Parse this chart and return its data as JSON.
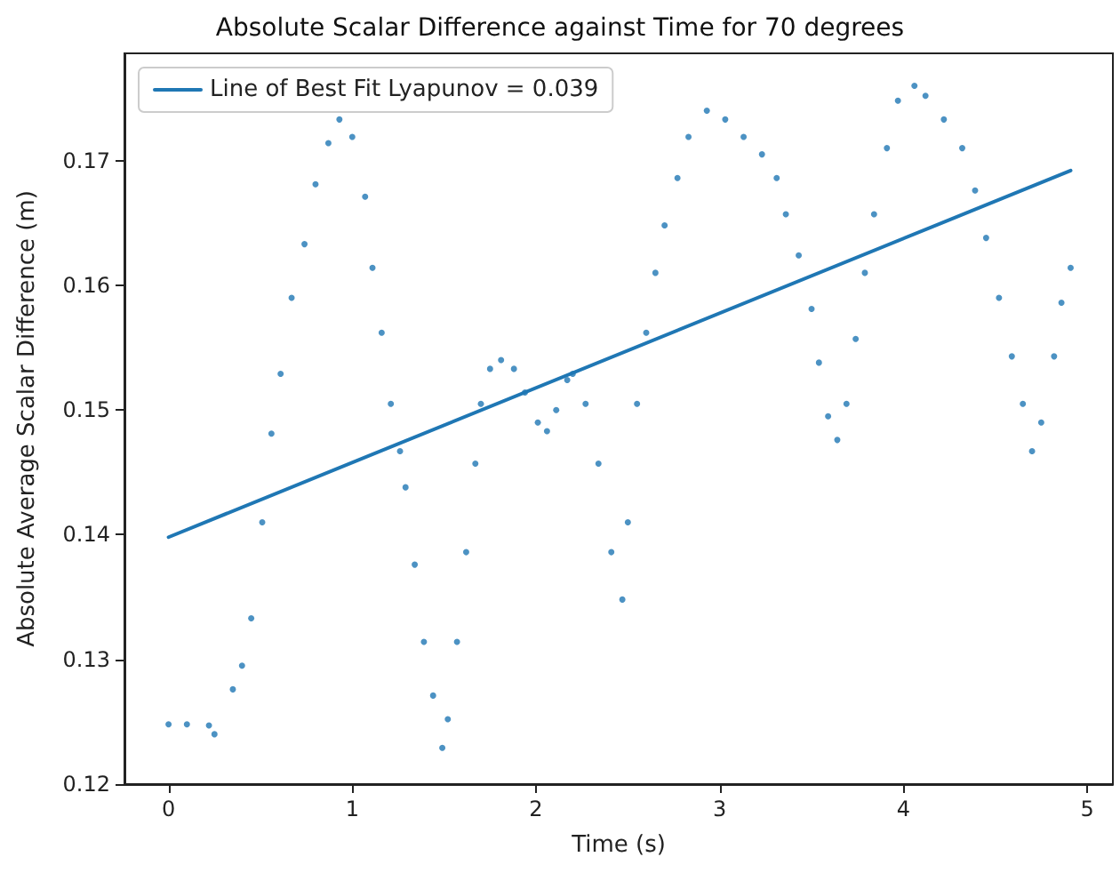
{
  "chart_data": {
    "type": "scatter",
    "title": "Absolute Scalar Difference against Time for 70 degrees",
    "xlabel": "Time (s)",
    "ylabel": "Absolute Average Scalar Difference (m)",
    "xlim": [
      -0.24,
      5.14
    ],
    "ylim": [
      0.12,
      0.1786
    ],
    "xticks": [
      0,
      1,
      2,
      3,
      4,
      5
    ],
    "yticks": [
      0.12,
      0.13,
      0.14,
      0.15,
      0.16,
      0.17
    ],
    "grid": false,
    "legend": "top left",
    "marker": "circle",
    "series": [
      {
        "color": "#1f77b4",
        "x": [
          0,
          0.1,
          0.22,
          0.25,
          0.35,
          0.4,
          0.45,
          0.51,
          0.56,
          0.61,
          0.67,
          0.74,
          0.8,
          0.87,
          0.93,
          1.0,
          1.07,
          1.11,
          1.16,
          1.21,
          1.26,
          1.29,
          1.34,
          1.39,
          1.44,
          1.49,
          1.52,
          1.57,
          1.62,
          1.67,
          1.7,
          1.75,
          1.81,
          1.88,
          1.94,
          2.01,
          2.06,
          2.11,
          2.17,
          2.2,
          2.27,
          2.34,
          2.41,
          2.47,
          2.5,
          2.55,
          2.6,
          2.65,
          2.7,
          2.77,
          2.83,
          2.93,
          3.03,
          3.13,
          3.23,
          3.31,
          3.36,
          3.43,
          3.5,
          3.54,
          3.59,
          3.64,
          3.69,
          3.74,
          3.79,
          3.84,
          3.91,
          3.97,
          4.06,
          4.12,
          4.22,
          4.32,
          4.39,
          4.45,
          4.52,
          4.59,
          4.65,
          4.7,
          4.75,
          4.82,
          4.86,
          4.91
        ],
        "values": [
          0.1248,
          0.1248,
          0.1247,
          0.124,
          0.1276,
          0.1295,
          0.1333,
          0.141,
          0.1481,
          0.1529,
          0.159,
          0.1633,
          0.1681,
          0.1714,
          0.1733,
          0.1719,
          0.1671,
          0.1614,
          0.1562,
          0.1505,
          0.1467,
          0.1438,
          0.1376,
          0.1314,
          0.1271,
          0.1229,
          0.1252,
          0.1314,
          0.1386,
          0.1457,
          0.1505,
          0.1533,
          0.154,
          0.1533,
          0.1514,
          0.149,
          0.1483,
          0.15,
          0.1524,
          0.1529,
          0.1505,
          0.1457,
          0.1386,
          0.1348,
          0.141,
          0.1505,
          0.1562,
          0.161,
          0.1648,
          0.1686,
          0.1719,
          0.174,
          0.1733,
          0.1719,
          0.1705,
          0.1686,
          0.1657,
          0.1624,
          0.1581,
          0.1538,
          0.1495,
          0.1476,
          0.1505,
          0.1557,
          0.161,
          0.1657,
          0.171,
          0.1748,
          0.176,
          0.1752,
          0.1733,
          0.171,
          0.1676,
          0.1638,
          0.159,
          0.1543,
          0.1505,
          0.1467,
          0.149,
          0.1543,
          0.1586,
          0.1614
        ]
      },
      {
        "type": "line",
        "name": "Line of Best Fit Lyapunov = 0.039",
        "color": "#1f77b4",
        "marker": "none",
        "line_style": "solid",
        "x": [
          0,
          4.91
        ],
        "values": [
          0.1398,
          0.1692
        ]
      }
    ]
  }
}
